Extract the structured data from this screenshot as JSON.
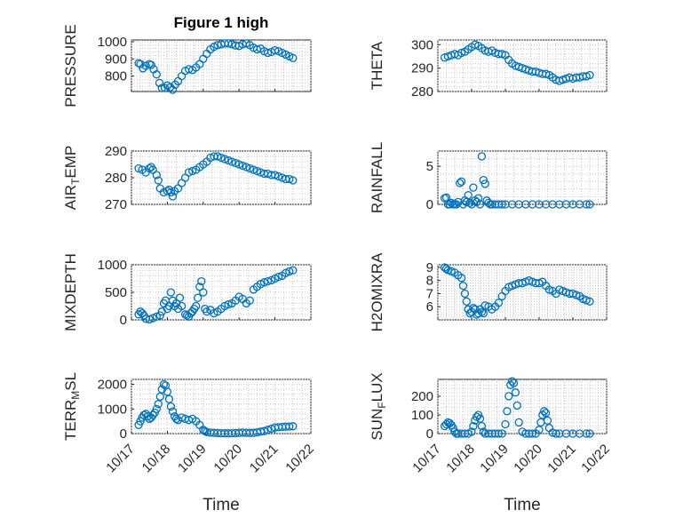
{
  "chart_data": [
    {
      "type": "scatter",
      "title": "Figure 1 high",
      "ylabel": "PRESSURE",
      "xlabel": "",
      "ylim": [
        710,
        1010
      ],
      "yticks": [
        800,
        900,
        1000
      ],
      "xlim": [
        0,
        5
      ],
      "xticks": [
        0,
        1,
        2,
        3,
        4,
        5
      ],
      "xticklabels": [
        "10/17",
        "10/18",
        "10/19",
        "10/20",
        "10/21",
        "10/22"
      ],
      "grid": true,
      "x": [
        0.2,
        0.25,
        0.32,
        0.4,
        0.5,
        0.55,
        0.62,
        0.7,
        0.78,
        0.85,
        0.93,
        1.0,
        1.08,
        1.15,
        1.22,
        1.3,
        1.4,
        1.5,
        1.6,
        1.7,
        1.8,
        1.9,
        2.0,
        2.1,
        2.2,
        2.3,
        2.4,
        2.5,
        2.6,
        2.7,
        2.8,
        2.9,
        3.0,
        3.1,
        3.2,
        3.3,
        3.4,
        3.5,
        3.6,
        3.7,
        3.8,
        3.9,
        4.0,
        4.1,
        4.2,
        4.3,
        4.4,
        4.5
      ],
      "y": [
        875,
        870,
        845,
        860,
        870,
        865,
        840,
        810,
        760,
        730,
        730,
        745,
        735,
        720,
        750,
        770,
        800,
        830,
        840,
        835,
        850,
        870,
        900,
        930,
        955,
        970,
        980,
        985,
        990,
        990,
        985,
        978,
        975,
        985,
        990,
        980,
        965,
        955,
        960,
        945,
        935,
        940,
        950,
        945,
        935,
        925,
        915,
        905
      ],
      "color": "#0072bd"
    },
    {
      "type": "scatter",
      "ylabel": "THETA",
      "xlabel": "",
      "ylim": [
        280,
        302
      ],
      "yticks": [
        280,
        290,
        300
      ],
      "xlim": [
        0,
        5
      ],
      "xticks": [
        0,
        1,
        2,
        3,
        4,
        5
      ],
      "xticklabels": [
        "10/17",
        "10/18",
        "10/19",
        "10/20",
        "10/21",
        "10/22"
      ],
      "grid": true,
      "x": [
        0.2,
        0.3,
        0.4,
        0.5,
        0.6,
        0.7,
        0.8,
        0.9,
        1.0,
        1.1,
        1.2,
        1.3,
        1.4,
        1.5,
        1.6,
        1.7,
        1.8,
        1.9,
        2.0,
        2.1,
        2.2,
        2.3,
        2.4,
        2.5,
        2.6,
        2.7,
        2.8,
        2.9,
        3.0,
        3.1,
        3.2,
        3.3,
        3.4,
        3.5,
        3.6,
        3.7,
        3.8,
        3.9,
        4.0,
        4.1,
        4.2,
        4.3,
        4.4,
        4.5
      ],
      "y": [
        294.5,
        295,
        295.5,
        296,
        295.5,
        296.5,
        297,
        298,
        299,
        300,
        299.5,
        298.5,
        297.5,
        297,
        297.5,
        296.5,
        296,
        296,
        295.5,
        293.5,
        292,
        291,
        290.5,
        290,
        289.5,
        289,
        288.5,
        288.5,
        288,
        287.5,
        287.5,
        287,
        286,
        285,
        284.5,
        285,
        285.5,
        286,
        285.5,
        286,
        286,
        286.5,
        286.5,
        287
      ],
      "color": "#0072bd"
    },
    {
      "type": "scatter",
      "ylabel": "AIR_TEMP",
      "xlabel": "",
      "ylim": [
        270,
        290
      ],
      "yticks": [
        270,
        280,
        290
      ],
      "xlim": [
        0,
        5
      ],
      "xticks": [
        0,
        1,
        2,
        3,
        4,
        5
      ],
      "xticklabels": [
        "10/17",
        "10/18",
        "10/19",
        "10/20",
        "10/21",
        "10/22"
      ],
      "grid": true,
      "x": [
        0.2,
        0.3,
        0.4,
        0.5,
        0.55,
        0.6,
        0.7,
        0.75,
        0.8,
        0.9,
        1.0,
        1.05,
        1.1,
        1.15,
        1.2,
        1.3,
        1.4,
        1.5,
        1.6,
        1.7,
        1.8,
        1.9,
        2.0,
        2.1,
        2.2,
        2.3,
        2.4,
        2.5,
        2.6,
        2.7,
        2.8,
        2.9,
        3.0,
        3.1,
        3.2,
        3.3,
        3.4,
        3.5,
        3.6,
        3.7,
        3.8,
        3.9,
        4.0,
        4.1,
        4.2,
        4.3,
        4.4,
        4.5
      ],
      "y": [
        283.5,
        283,
        282,
        283.5,
        284,
        283,
        281,
        279,
        276,
        274.5,
        275,
        275.5,
        274.5,
        273,
        275,
        276,
        278,
        280,
        282,
        282.5,
        283,
        284,
        285,
        286,
        287.5,
        288,
        288,
        287.5,
        287,
        286.5,
        286,
        285.5,
        285,
        284.5,
        284,
        283.5,
        283,
        282.5,
        282,
        281.5,
        281.5,
        281,
        281,
        280.5,
        280,
        279.5,
        279.5,
        279
      ],
      "color": "#0072bd"
    },
    {
      "type": "scatter",
      "ylabel": "RAINFALL",
      "xlabel": "",
      "ylim": [
        0,
        7
      ],
      "yticks": [
        0,
        5
      ],
      "xlim": [
        0,
        5
      ],
      "xticks": [
        0,
        1,
        2,
        3,
        4,
        5
      ],
      "xticklabels": [
        "10/17",
        "10/18",
        "10/19",
        "10/20",
        "10/21",
        "10/22"
      ],
      "grid": true,
      "x": [
        0.2,
        0.25,
        0.3,
        0.35,
        0.4,
        0.45,
        0.5,
        0.55,
        0.6,
        0.65,
        0.7,
        0.75,
        0.8,
        0.85,
        0.9,
        0.95,
        1.0,
        1.05,
        1.1,
        1.15,
        1.2,
        1.25,
        1.3,
        1.35,
        1.4,
        1.45,
        1.5,
        1.55,
        1.6,
        1.7,
        1.8,
        1.9,
        2.0,
        2.2,
        2.4,
        2.6,
        2.8,
        3.0,
        3.2,
        3.4,
        3.6,
        3.8,
        4.0,
        4.2,
        4.4,
        4.5
      ],
      "y": [
        0.8,
        0.9,
        0,
        0,
        0.2,
        0,
        0,
        0,
        0.3,
        2.8,
        3.0,
        0,
        0.5,
        0.3,
        1.2,
        0.2,
        0,
        2.2,
        0.5,
        0.3,
        0.8,
        0,
        6.3,
        3.2,
        2.7,
        0.5,
        0.2,
        0,
        0,
        0,
        0,
        0,
        0,
        0,
        0,
        0,
        0,
        0,
        0,
        0,
        0,
        0,
        0,
        0,
        0,
        0
      ],
      "color": "#0072bd"
    },
    {
      "type": "scatter",
      "ylabel": "MIXDEPTH",
      "xlabel": "",
      "ylim": [
        0,
        1000
      ],
      "yticks": [
        0,
        500,
        1000
      ],
      "xlim": [
        0,
        5
      ],
      "xticks": [
        0,
        1,
        2,
        3,
        4,
        5
      ],
      "xticklabels": [
        "10/17",
        "10/18",
        "10/19",
        "10/20",
        "10/21",
        "10/22"
      ],
      "grid": true,
      "x": [
        0.2,
        0.25,
        0.3,
        0.35,
        0.4,
        0.5,
        0.6,
        0.7,
        0.8,
        0.85,
        0.9,
        0.95,
        1.0,
        1.05,
        1.1,
        1.15,
        1.2,
        1.25,
        1.3,
        1.35,
        1.4,
        1.5,
        1.55,
        1.6,
        1.65,
        1.7,
        1.75,
        1.8,
        1.85,
        1.9,
        1.95,
        2.0,
        2.05,
        2.1,
        2.2,
        2.3,
        2.4,
        2.5,
        2.6,
        2.7,
        2.8,
        2.9,
        3.0,
        3.1,
        3.2,
        3.3,
        3.4,
        3.5,
        3.6,
        3.7,
        3.8,
        3.9,
        4.0,
        4.1,
        4.2,
        4.3,
        4.4,
        4.5
      ],
      "y": [
        100,
        150,
        120,
        80,
        20,
        10,
        30,
        60,
        80,
        150,
        300,
        350,
        200,
        250,
        500,
        350,
        250,
        300,
        200,
        400,
        250,
        100,
        80,
        60,
        120,
        150,
        200,
        250,
        400,
        600,
        700,
        500,
        200,
        150,
        180,
        120,
        150,
        200,
        250,
        280,
        300,
        350,
        420,
        380,
        300,
        350,
        550,
        600,
        650,
        680,
        700,
        720,
        750,
        780,
        800,
        850,
        880,
        900
      ],
      "color": "#0072bd"
    },
    {
      "type": "scatter",
      "ylabel": "H2OMIXRA",
      "xlabel": "",
      "ylim": [
        5,
        9.2
      ],
      "yticks": [
        6,
        7,
        8,
        9
      ],
      "xlim": [
        0,
        5
      ],
      "xticks": [
        0,
        1,
        2,
        3,
        4,
        5
      ],
      "xticklabels": [
        "10/17",
        "10/18",
        "10/19",
        "10/20",
        "10/21",
        "10/22"
      ],
      "grid": true,
      "x": [
        0.2,
        0.25,
        0.3,
        0.4,
        0.5,
        0.6,
        0.7,
        0.75,
        0.8,
        0.85,
        0.9,
        0.95,
        1.0,
        1.05,
        1.1,
        1.15,
        1.2,
        1.25,
        1.3,
        1.35,
        1.4,
        1.5,
        1.6,
        1.7,
        1.8,
        1.9,
        2.0,
        2.1,
        2.2,
        2.3,
        2.4,
        2.5,
        2.6,
        2.7,
        2.8,
        2.9,
        3.0,
        3.1,
        3.2,
        3.3,
        3.4,
        3.5,
        3.6,
        3.7,
        3.8,
        3.9,
        4.0,
        4.1,
        4.2,
        4.3,
        4.4,
        4.5
      ],
      "y": [
        9,
        8.9,
        8.8,
        8.7,
        8.6,
        8.4,
        8.2,
        7.6,
        7,
        6.4,
        5.8,
        5.5,
        5.6,
        5.9,
        5.8,
        5.4,
        5.5,
        5.8,
        5.6,
        5.5,
        6.1,
        6.0,
        5.8,
        6.0,
        6.3,
        6.8,
        7.2,
        7.5,
        7.6,
        7.7,
        7.8,
        7.8,
        7.9,
        8.0,
        7.9,
        7.8,
        7.8,
        7.9,
        7.6,
        7.3,
        7.2,
        7.0,
        7.3,
        7.2,
        7.1,
        7.0,
        7.0,
        6.9,
        6.8,
        6.6,
        6.5,
        6.4
      ],
      "color": "#0072bd"
    },
    {
      "type": "scatter",
      "ylabel": "TERR_MSL",
      "xlabel": "Time",
      "ylim": [
        0,
        2200
      ],
      "yticks": [
        0,
        1000,
        2000
      ],
      "xlim": [
        0,
        5
      ],
      "xticks": [
        0,
        1,
        2,
        3,
        4,
        5
      ],
      "xticklabels": [
        "10/17",
        "10/18",
        "10/19",
        "10/20",
        "10/21",
        "10/22"
      ],
      "grid": true,
      "x": [
        0.2,
        0.25,
        0.3,
        0.35,
        0.4,
        0.45,
        0.5,
        0.55,
        0.6,
        0.65,
        0.7,
        0.75,
        0.8,
        0.85,
        0.9,
        0.95,
        1.0,
        1.05,
        1.1,
        1.15,
        1.2,
        1.25,
        1.3,
        1.4,
        1.5,
        1.6,
        1.7,
        1.8,
        1.9,
        2.0,
        2.05,
        2.1,
        2.2,
        2.3,
        2.4,
        2.5,
        2.6,
        2.7,
        2.8,
        2.9,
        3.0,
        3.1,
        3.2,
        3.3,
        3.4,
        3.5,
        3.6,
        3.7,
        3.8,
        3.9,
        4.0,
        4.1,
        4.2,
        4.3,
        4.4,
        4.5
      ],
      "y": [
        350,
        500,
        650,
        750,
        800,
        700,
        600,
        650,
        750,
        850,
        1000,
        1200,
        1500,
        1800,
        2000,
        1950,
        1700,
        1400,
        1100,
        900,
        700,
        600,
        550,
        650,
        600,
        550,
        600,
        500,
        350,
        150,
        100,
        60,
        40,
        30,
        20,
        15,
        10,
        10,
        15,
        20,
        30,
        40,
        30,
        25,
        30,
        50,
        80,
        100,
        150,
        200,
        250,
        260,
        270,
        280,
        290,
        300
      ],
      "color": "#0072bd"
    },
    {
      "type": "scatter",
      "ylabel": "SUN_FLUX",
      "xlabel": "Time",
      "ylim": [
        0,
        290
      ],
      "yticks": [
        0,
        100,
        200
      ],
      "xlim": [
        0,
        5
      ],
      "xticks": [
        0,
        1,
        2,
        3,
        4,
        5
      ],
      "xticklabels": [
        "10/17",
        "10/18",
        "10/19",
        "10/20",
        "10/21",
        "10/22"
      ],
      "grid": true,
      "x": [
        0.2,
        0.25,
        0.3,
        0.35,
        0.4,
        0.45,
        0.5,
        0.55,
        0.6,
        0.7,
        0.8,
        0.9,
        1.0,
        1.05,
        1.1,
        1.15,
        1.2,
        1.25,
        1.3,
        1.35,
        1.4,
        1.5,
        1.6,
        1.7,
        1.8,
        1.9,
        2.0,
        2.05,
        2.1,
        2.15,
        2.2,
        2.25,
        2.3,
        2.35,
        2.4,
        2.5,
        2.6,
        2.7,
        2.8,
        2.9,
        3.0,
        3.05,
        3.1,
        3.15,
        3.2,
        3.25,
        3.3,
        3.4,
        3.5,
        3.6,
        3.8,
        4.0,
        4.2,
        4.4,
        4.5
      ],
      "y": [
        40,
        50,
        60,
        55,
        45,
        30,
        10,
        0,
        0,
        0,
        0,
        0,
        10,
        40,
        70,
        90,
        100,
        80,
        40,
        10,
        0,
        0,
        0,
        0,
        0,
        0,
        50,
        120,
        200,
        260,
        280,
        270,
        220,
        150,
        60,
        10,
        0,
        0,
        0,
        0,
        20,
        60,
        100,
        120,
        110,
        70,
        30,
        5,
        0,
        0,
        0,
        0,
        0,
        0,
        0
      ],
      "color": "#0072bd"
    }
  ]
}
